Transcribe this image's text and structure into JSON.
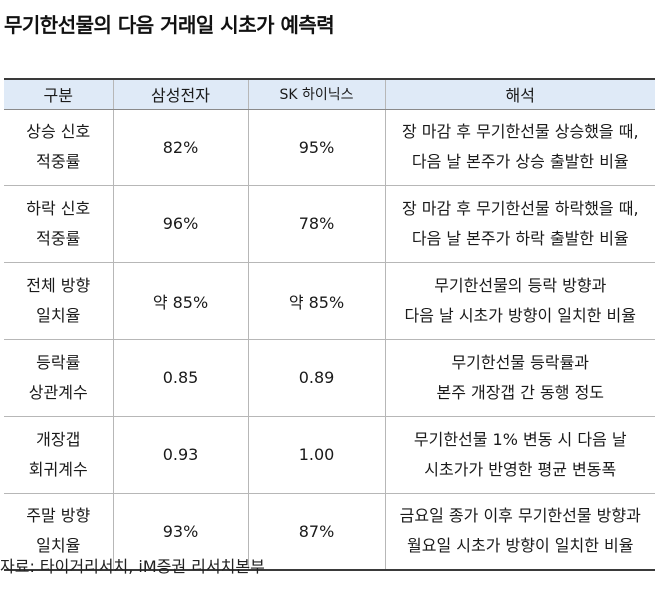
{
  "title": "무기한선물의 다음 거래일 시초가 예측력",
  "table": {
    "headers": [
      "구분",
      "삼성전자",
      "SK 하이닉스",
      "해석"
    ],
    "rows": [
      {
        "label": [
          "상승 신호",
          "적중률"
        ],
        "samsung": "82%",
        "sk": "95%",
        "interpretation": [
          "장 마감 후 무기한선물 상승했을 때,",
          "다음 날 본주가 상승 출발한 비율"
        ]
      },
      {
        "label": [
          "하락 신호",
          "적중률"
        ],
        "samsung": "96%",
        "sk": "78%",
        "interpretation": [
          "장 마감 후 무기한선물 하락했을 때,",
          "다음 날 본주가 하락 출발한 비율"
        ]
      },
      {
        "label": [
          "전체 방향",
          "일치율"
        ],
        "samsung": "약 85%",
        "sk": "약 85%",
        "interpretation": [
          "무기한선물의 등락 방향과",
          "다음 날 시초가 방향이 일치한 비율"
        ]
      },
      {
        "label": [
          "등락률",
          "상관계수"
        ],
        "samsung": "0.85",
        "sk": "0.89",
        "interpretation": [
          "무기한선물 등락률과",
          "본주 개장갭 간 동행 정도"
        ]
      },
      {
        "label": [
          "개장갭",
          "회귀계수"
        ],
        "samsung": "0.93",
        "sk": "1.00",
        "interpretation": [
          "무기한선물 1% 변동 시 다음 날",
          "시초가가 반영한 평균 변동폭"
        ]
      },
      {
        "label": [
          "주말 방향",
          "일치율"
        ],
        "samsung": "93%",
        "sk": "87%",
        "interpretation": [
          "금요일 종가 이후 무기한선물 방향과",
          "월요일 시초가 방향이 일치한 비율"
        ]
      }
    ]
  },
  "source": "자료: 타이거리서치, iM증권 리서치본부"
}
